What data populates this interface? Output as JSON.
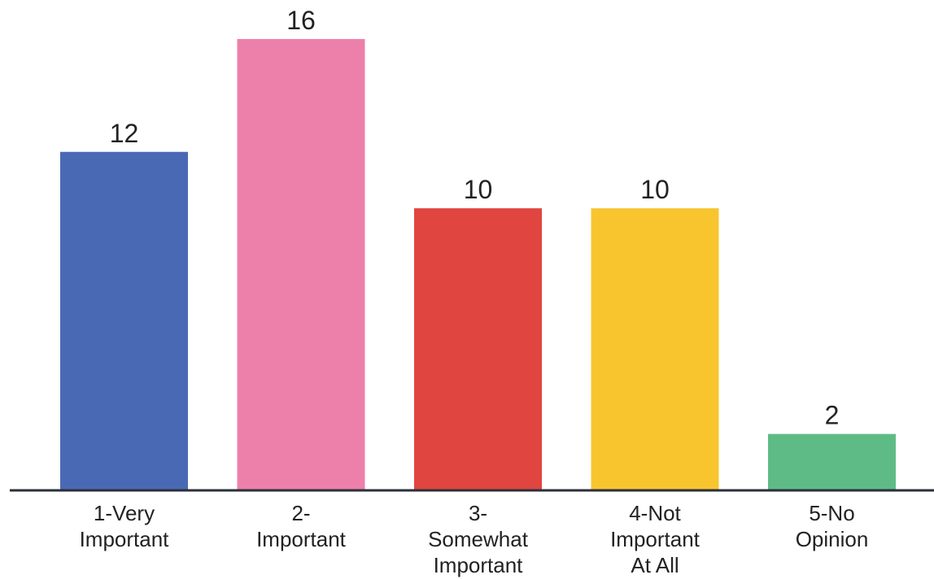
{
  "chart_data": {
    "type": "bar",
    "categories": [
      [
        "1-Very",
        "Important"
      ],
      [
        "2-",
        "Important"
      ],
      [
        "3-",
        "Somewhat",
        "Important"
      ],
      [
        "4-Not",
        "Important",
        "At All"
      ],
      [
        "5-No",
        "Opinion"
      ]
    ],
    "values": [
      12,
      16,
      10,
      10,
      2
    ],
    "data_labels": [
      "12",
      "16",
      "10",
      "10",
      "2"
    ],
    "colors": [
      "#4a69b5",
      "#ec80aa",
      "#e14540",
      "#f8c52f",
      "#5fbb86"
    ],
    "ylim": [
      0,
      16
    ],
    "grid": false,
    "legend": "none",
    "axis_color": "#2b2f3a"
  }
}
